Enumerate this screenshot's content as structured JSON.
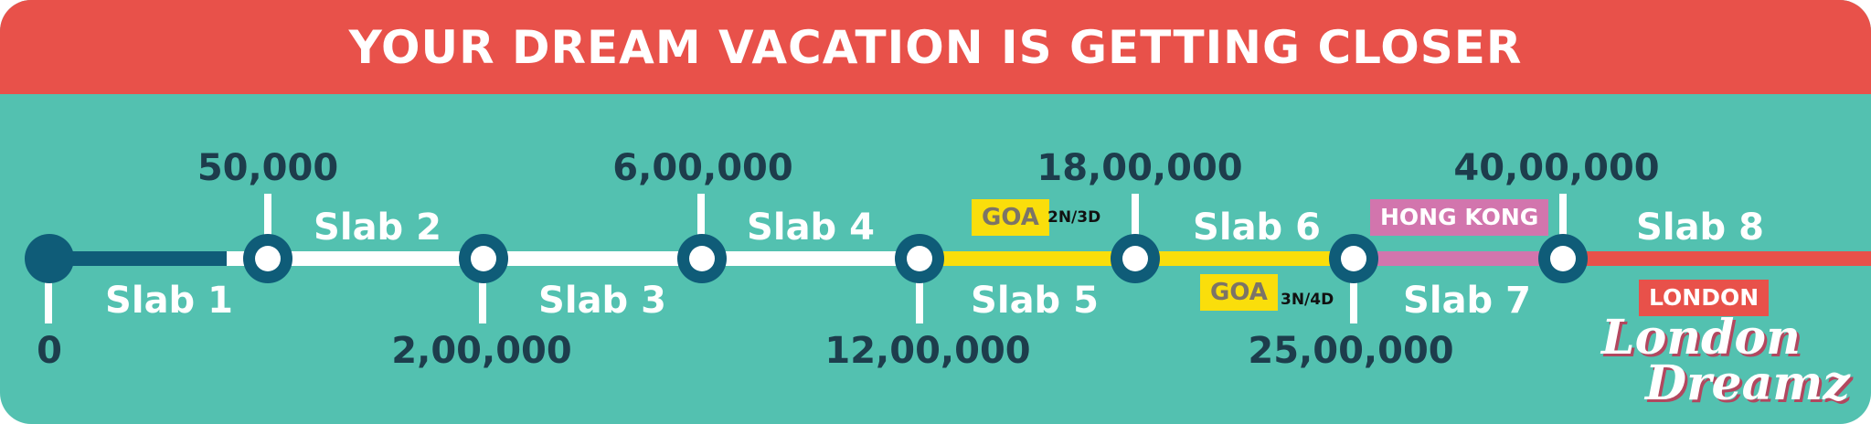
{
  "header": {
    "title": "YOUR DREAM VACATION IS GETTING CLOSER"
  },
  "milestones": [
    {
      "amount": "0"
    },
    {
      "amount": "50,000"
    },
    {
      "amount": "2,00,000"
    },
    {
      "amount": "6,00,000"
    },
    {
      "amount": "12,00,000"
    },
    {
      "amount": "18,00,000"
    },
    {
      "amount": "25,00,000"
    },
    {
      "amount": "40,00,000"
    }
  ],
  "slabs": [
    {
      "label": "Slab 1",
      "color": "#0f5c78"
    },
    {
      "label": "Slab 2",
      "color": "#ffffff"
    },
    {
      "label": "Slab 3",
      "color": "#ffffff"
    },
    {
      "label": "Slab 4",
      "color": "#ffffff"
    },
    {
      "label": "Slab 5",
      "color": "#fade0b"
    },
    {
      "label": "Slab 6",
      "color": "#fade0b"
    },
    {
      "label": "Slab 7",
      "color": "#d275ad"
    },
    {
      "label": "Slab 8",
      "color": "#e8514a"
    }
  ],
  "tags": {
    "goa_1": {
      "label": "GOA",
      "note": "2N/3D"
    },
    "goa_2": {
      "label": "GOA",
      "note": "3N/4D"
    },
    "hong_kong": {
      "label": "HONG KONG"
    },
    "london": {
      "label": "LONDON"
    }
  },
  "logo": {
    "line1": "London",
    "line2": "Dreamz"
  },
  "colors": {
    "background": "#53c1b0",
    "header": "#e8514a",
    "node": "#0f5c78",
    "amount_text": "#1d3d4c",
    "goa": "#fade0b",
    "hong_kong": "#d275ad",
    "london": "#e8514a"
  }
}
